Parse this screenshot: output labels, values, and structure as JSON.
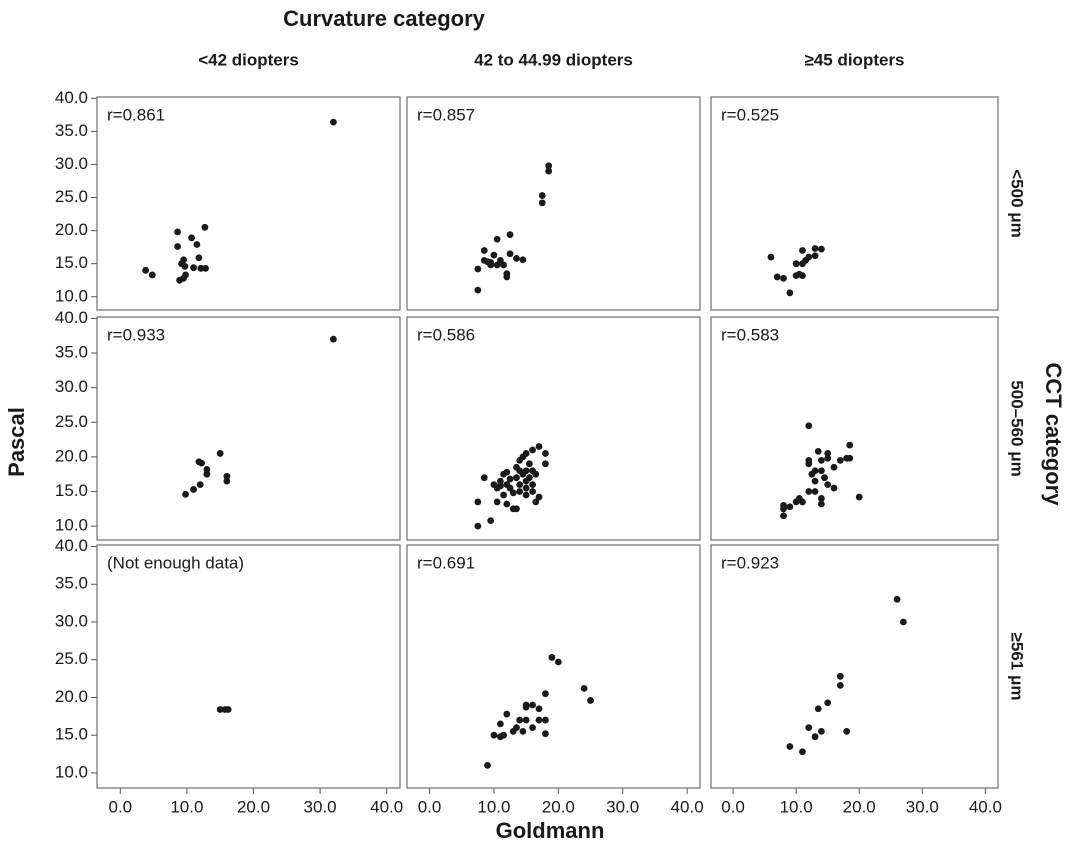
{
  "chart_data": {
    "type": "scatter",
    "col_title": "Curvature category",
    "columns": [
      "<42 diopters",
      "42 to 44.99 diopters",
      "≥45 diopters"
    ],
    "row_title": "CCT category",
    "rows": [
      "<500 μm",
      "500–560 μm",
      "≥561 μm"
    ],
    "x_label": "Goldmann",
    "y_label": "Pascal",
    "color": "#1a1a1a",
    "xlim": [
      -3.5,
      42
    ],
    "ylim": [
      8,
      40.2
    ],
    "xticks": [
      {
        "value": 0,
        "label": "0.0"
      },
      {
        "value": 10,
        "label": "10.0"
      },
      {
        "value": 20,
        "label": "20.0"
      },
      {
        "value": 30,
        "label": "30.0"
      },
      {
        "value": 40,
        "label": "40.0"
      }
    ],
    "yticks": [
      {
        "value": 10,
        "label": "10.0"
      },
      {
        "value": 15,
        "label": "15.0"
      },
      {
        "value": 20,
        "label": "20.0"
      },
      {
        "value": 25,
        "label": "25.0"
      },
      {
        "value": 30,
        "label": "30.0"
      },
      {
        "value": 35,
        "label": "35.0"
      },
      {
        "value": 40,
        "label": "40.0"
      }
    ],
    "panels": [
      {
        "annotation": "r=0.861",
        "x": [
          3.8,
          4.8,
          8.6,
          8.6,
          9.2,
          9.5,
          9.7,
          9.8,
          8.9,
          9.5,
          10.7,
          11.5,
          11.8,
          12.7,
          12.1,
          12.8,
          11.0,
          32
        ],
        "y": [
          14.0,
          13.3,
          19.8,
          17.6,
          15.0,
          15.6,
          14.6,
          13.3,
          12.5,
          12.8,
          18.9,
          17.9,
          15.9,
          20.5,
          14.3,
          14.3,
          14.4,
          36.4
        ]
      },
      {
        "annotation": "r=0.857",
        "x": [
          7.5,
          7.5,
          8.5,
          8.5,
          9.5,
          9.5,
          10,
          10.5,
          10.5,
          11,
          11.5,
          12,
          12,
          12.5,
          13.5,
          14.5,
          12.5,
          17.5,
          17.5,
          18.5,
          18.5,
          9
        ],
        "y": [
          11,
          14.2,
          15.5,
          17,
          14.8,
          15.2,
          16.3,
          14.8,
          18.7,
          15.5,
          14.8,
          13,
          13.5,
          19.4,
          15.8,
          15.6,
          16.5,
          25.3,
          24.2,
          29.8,
          29,
          15.3
        ]
      },
      {
        "annotation": "r=0.525",
        "x": [
          6,
          7,
          8,
          9,
          10,
          10,
          10.5,
          11,
          11,
          11,
          11.5,
          12,
          13,
          13,
          14
        ],
        "y": [
          16,
          13,
          12.8,
          10.6,
          13.2,
          15,
          13.4,
          13.2,
          15,
          17,
          15.5,
          16,
          16.2,
          17.3,
          17.2
        ]
      },
      {
        "annotation": "r=0.933",
        "x": [
          9.8,
          11,
          12,
          11.8,
          12.2,
          13,
          13,
          15,
          16,
          16,
          32
        ],
        "y": [
          14.6,
          15.3,
          16,
          19.3,
          19.1,
          17.5,
          18.2,
          20.5,
          17.2,
          16.5,
          37
        ]
      },
      {
        "annotation": "r=0.586",
        "x": [
          7.5,
          7.5,
          8.5,
          9.5,
          10,
          10.5,
          10.5,
          11,
          11,
          11.5,
          11.5,
          12,
          12,
          12,
          12.5,
          12.5,
          13,
          13,
          13.5,
          13.5,
          14,
          14,
          14,
          14,
          14.5,
          14.5,
          15,
          15,
          15,
          15,
          15,
          15.5,
          15.5,
          16,
          16,
          16,
          16,
          16.5,
          17,
          17,
          18,
          18,
          16.5,
          13.5
        ],
        "y": [
          10,
          13.5,
          17,
          10.8,
          16,
          15.5,
          13.5,
          16.5,
          15.8,
          17.5,
          14.5,
          16,
          13.2,
          17.8,
          15.5,
          16.8,
          12.5,
          14.8,
          17,
          12.5,
          16,
          18,
          19.5,
          15,
          17.5,
          20,
          14.5,
          16.5,
          18,
          20.5,
          15.5,
          17,
          19,
          21,
          18,
          16,
          15,
          17.5,
          21.5,
          14.2,
          19,
          20.5,
          13.5,
          18.5
        ]
      },
      {
        "annotation": "r=0.583",
        "x": [
          8,
          8,
          8,
          9,
          10,
          10.5,
          11,
          12,
          12,
          12,
          12,
          12.5,
          13,
          13,
          13.5,
          14,
          14,
          14,
          14,
          14.5,
          15,
          15,
          15,
          16,
          16,
          17,
          18,
          18.5,
          18.5,
          20,
          13
        ],
        "y": [
          13,
          12.5,
          11.5,
          12.8,
          13.5,
          14,
          13.5,
          24.5,
          19.5,
          19,
          15,
          17.5,
          15,
          16.5,
          20.8,
          13.2,
          14,
          18,
          19.5,
          17,
          20.5,
          19.8,
          16,
          18.5,
          15.5,
          19.5,
          19.8,
          21.7,
          19.8,
          14.2,
          18
        ]
      },
      {
        "annotation": "(Not enough data)",
        "x": [
          15,
          15.7,
          16.2
        ],
        "y": [
          18.4,
          18.4,
          18.4
        ]
      },
      {
        "annotation": "r=0.691",
        "x": [
          9,
          10,
          11,
          11,
          11.5,
          12,
          13,
          13.5,
          14,
          14.5,
          15,
          15,
          15,
          16,
          17,
          17,
          18,
          18,
          18,
          19,
          20,
          24,
          25,
          16
        ],
        "y": [
          11,
          15,
          14.8,
          16.5,
          15,
          17.8,
          15.5,
          16,
          17,
          15.5,
          19,
          18.7,
          17,
          16,
          18.5,
          17,
          20.5,
          15.2,
          17,
          25.3,
          24.7,
          21.2,
          19.6,
          19
        ]
      },
      {
        "annotation": "r=0.923",
        "x": [
          9,
          11,
          12,
          13,
          13.5,
          14,
          15,
          17,
          17,
          18,
          26,
          27
        ],
        "y": [
          13.5,
          12.8,
          16,
          14.8,
          18.5,
          15.5,
          19.3,
          22.8,
          21.6,
          15.5,
          33,
          30
        ]
      }
    ]
  }
}
